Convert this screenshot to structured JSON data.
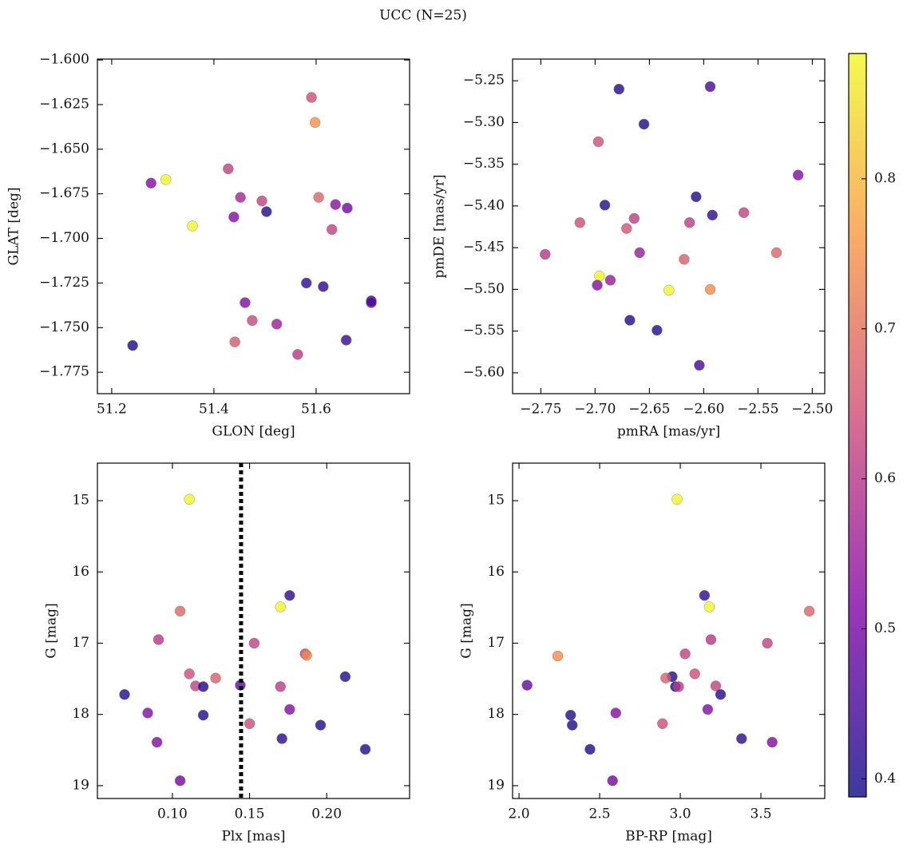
{
  "title": "UCC (N=25)",
  "colorbar": {
    "cmap": "plasma",
    "lim": [
      0.388,
      0.8835
    ],
    "ticks": [
      0.4,
      0.5,
      0.6,
      0.7,
      0.8
    ],
    "alpha": 0.8
  },
  "chart_data": [
    {
      "type": "scatter",
      "xlabel": "GLON [deg]",
      "ylabel": "GLAT [deg]",
      "xlim": [
        51.172,
        51.783
      ],
      "ylim": [
        -1.787,
        -1.5995
      ],
      "xticks": [
        51.2,
        51.4,
        51.6
      ],
      "yticks": [
        {
          "value": -1.6,
          "label": "−1.600"
        },
        {
          "value": -1.625,
          "label": "−1.625"
        },
        {
          "value": -1.65,
          "label": "−1.650"
        },
        {
          "value": -1.675,
          "label": "−1.675"
        },
        {
          "value": -1.7,
          "label": "−1.700"
        },
        {
          "value": -1.725,
          "label": "−1.725"
        },
        {
          "value": -1.75,
          "label": "−1.750"
        },
        {
          "value": -1.775,
          "label": "−1.775"
        }
      ],
      "x": [
        51.591,
        51.598,
        51.306,
        51.277,
        51.428,
        51.452,
        51.494,
        51.605,
        51.503,
        51.638,
        51.661,
        51.439,
        51.358,
        51.631,
        51.581,
        51.614,
        51.708,
        51.708,
        51.461,
        51.475,
        51.523,
        51.441,
        51.241,
        51.564,
        51.659
      ],
      "y": [
        -1.621,
        -1.635,
        -1.667,
        -1.669,
        -1.661,
        -1.677,
        -1.679,
        -1.677,
        -1.685,
        -1.681,
        -1.683,
        -1.688,
        -1.693,
        -1.695,
        -1.725,
        -1.727,
        -1.735,
        -1.736,
        -1.736,
        -1.746,
        -1.748,
        -1.758,
        -1.76,
        -1.765,
        -1.757
      ],
      "c": [
        0.64,
        0.75,
        0.88,
        0.52,
        0.62,
        0.57,
        0.62,
        0.68,
        0.41,
        0.53,
        0.5,
        0.52,
        0.88,
        0.62,
        0.42,
        0.42,
        0.42,
        0.47,
        0.52,
        0.63,
        0.56,
        0.66,
        0.4,
        0.6,
        0.43
      ]
    },
    {
      "type": "scatter",
      "xlabel": "pmRA [mas/yr]",
      "ylabel": "pmDE [mas/yr]",
      "xlim": [
        -2.776,
        -2.4885
      ],
      "ylim": [
        -5.625,
        -5.224
      ],
      "xticks": [
        {
          "value": -2.75,
          "label": "−2.75"
        },
        {
          "value": -2.7,
          "label": "−2.70"
        },
        {
          "value": -2.65,
          "label": "−2.65"
        },
        {
          "value": -2.6,
          "label": "−2.60"
        },
        {
          "value": -2.55,
          "label": "−2.55"
        },
        {
          "value": -2.5,
          "label": "−2.50"
        }
      ],
      "yticks": [
        {
          "value": -5.25,
          "label": "−5.25"
        },
        {
          "value": -5.3,
          "label": "−5.30"
        },
        {
          "value": -5.35,
          "label": "−5.35"
        },
        {
          "value": -5.4,
          "label": "−5.40"
        },
        {
          "value": -5.45,
          "label": "−5.45"
        },
        {
          "value": -5.5,
          "label": "−5.50"
        },
        {
          "value": -5.55,
          "label": "−5.55"
        },
        {
          "value": -5.6,
          "label": "−5.60"
        }
      ],
      "x": [
        -2.678,
        -2.594,
        -2.655,
        -2.697,
        -2.513,
        -2.607,
        -2.691,
        -2.592,
        -2.563,
        -2.714,
        -2.664,
        -2.613,
        -2.671,
        -2.746,
        -2.659,
        -2.618,
        -2.533,
        -2.696,
        -2.686,
        -2.698,
        -2.632,
        -2.594,
        -2.668,
        -2.643,
        -2.604
      ],
      "y": [
        -5.26,
        -5.257,
        -5.302,
        -5.323,
        -5.363,
        -5.389,
        -5.399,
        -5.411,
        -5.408,
        -5.42,
        -5.415,
        -5.42,
        -5.427,
        -5.458,
        -5.456,
        -5.464,
        -5.456,
        -5.484,
        -5.489,
        -5.495,
        -5.501,
        -5.5,
        -5.537,
        -5.549,
        -5.591
      ],
      "c": [
        0.41,
        0.45,
        0.41,
        0.64,
        0.52,
        0.41,
        0.41,
        0.42,
        0.62,
        0.64,
        0.61,
        0.61,
        0.65,
        0.6,
        0.55,
        0.67,
        0.68,
        0.88,
        0.55,
        0.52,
        0.88,
        0.74,
        0.41,
        0.41,
        0.45
      ]
    },
    {
      "type": "scatter",
      "xlabel": "Plx [mas]",
      "ylabel": "G [mag]",
      "vline": 0.1445,
      "xlim": [
        0.0514,
        0.2537
      ],
      "ylim": [
        19.18,
        14.473
      ],
      "xticks": [
        {
          "value": 0.1,
          "label": "0.10"
        },
        {
          "value": 0.15,
          "label": "0.15"
        },
        {
          "value": 0.2,
          "label": "0.20"
        }
      ],
      "yticks": [
        15,
        16,
        17,
        18,
        19
      ],
      "x": [
        0.111,
        0.176,
        0.105,
        0.17,
        0.091,
        0.153,
        0.186,
        0.187,
        0.212,
        0.111,
        0.128,
        0.115,
        0.12,
        0.144,
        0.17,
        0.069,
        0.176,
        0.084,
        0.12,
        0.15,
        0.196,
        0.171,
        0.09,
        0.225,
        0.105
      ],
      "y": [
        14.98,
        16.33,
        16.55,
        16.49,
        16.95,
        17.0,
        17.15,
        17.17,
        17.47,
        17.43,
        17.49,
        17.6,
        17.61,
        17.59,
        17.61,
        17.72,
        17.93,
        17.98,
        18.01,
        18.13,
        18.15,
        18.34,
        18.39,
        18.49,
        18.93
      ],
      "c": [
        0.88,
        0.42,
        0.68,
        0.88,
        0.6,
        0.62,
        0.62,
        0.74,
        0.41,
        0.64,
        0.67,
        0.62,
        0.41,
        0.48,
        0.61,
        0.41,
        0.52,
        0.52,
        0.41,
        0.64,
        0.41,
        0.42,
        0.52,
        0.41,
        0.5
      ]
    },
    {
      "type": "scatter",
      "xlabel": "BP-RP [mag]",
      "ylabel": "G [mag]",
      "xlim": [
        1.96,
        3.896
      ],
      "ylim": [
        19.18,
        14.473
      ],
      "xticks": [
        {
          "value": 2,
          "label": "2.0"
        },
        2.5,
        {
          "value": 3,
          "label": "3.0"
        },
        3.5
      ],
      "yticks": [
        15,
        16,
        17,
        18,
        19
      ],
      "x": [
        2.98,
        3.15,
        3.18,
        3.8,
        3.19,
        3.54,
        3.03,
        2.24,
        2.95,
        2.91,
        3.09,
        2.05,
        3.22,
        2.97,
        2.99,
        3.25,
        3.17,
        2.32,
        2.6,
        2.89,
        2.33,
        3.38,
        3.57,
        2.44,
        2.58
      ],
      "y": [
        14.98,
        16.33,
        16.49,
        16.55,
        16.95,
        17.0,
        17.15,
        17.18,
        17.47,
        17.49,
        17.43,
        17.59,
        17.6,
        17.61,
        17.61,
        17.72,
        17.93,
        18.01,
        17.98,
        18.13,
        18.15,
        18.34,
        18.39,
        18.49,
        18.93
      ],
      "c": [
        0.88,
        0.42,
        0.88,
        0.68,
        0.6,
        0.62,
        0.62,
        0.74,
        0.41,
        0.67,
        0.64,
        0.48,
        0.62,
        0.41,
        0.61,
        0.41,
        0.52,
        0.41,
        0.52,
        0.64,
        0.41,
        0.42,
        0.52,
        0.41,
        0.5
      ]
    }
  ]
}
